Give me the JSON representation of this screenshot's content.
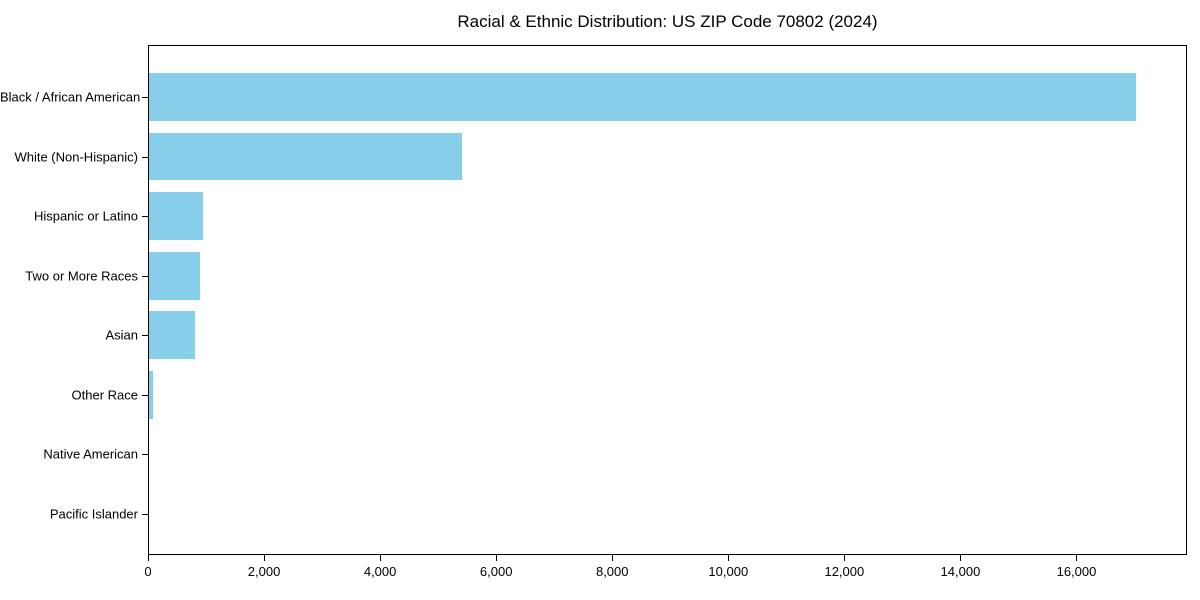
{
  "chart_data": {
    "type": "bar",
    "orientation": "horizontal",
    "title": "Racial & Ethnic Distribution: US ZIP Code 70802 (2024)",
    "categories": [
      "Black / African American",
      "White (Non-Hispanic)",
      "Hispanic or Latino",
      "Two or More Races",
      "Asian",
      "Other Race",
      "Native American",
      "Pacific Islander"
    ],
    "values": [
      17000,
      5400,
      930,
      880,
      790,
      70,
      0,
      0
    ],
    "bar_color": "#87CEEB",
    "background_color": "#ffffff",
    "axis_color": "#000000",
    "xlim": [
      0,
      17870
    ],
    "x_ticks": [
      {
        "value": 0,
        "label": "0"
      },
      {
        "value": 2000,
        "label": "2,000"
      },
      {
        "value": 4000,
        "label": "4,000"
      },
      {
        "value": 6000,
        "label": "6,000"
      },
      {
        "value": 8000,
        "label": "8,000"
      },
      {
        "value": 10000,
        "label": "10,000"
      },
      {
        "value": 12000,
        "label": "12,000"
      },
      {
        "value": 14000,
        "label": "14,000"
      },
      {
        "value": 16000,
        "label": "16,000"
      }
    ],
    "grid": false,
    "legend": null,
    "xlabel": "",
    "ylabel": ""
  }
}
